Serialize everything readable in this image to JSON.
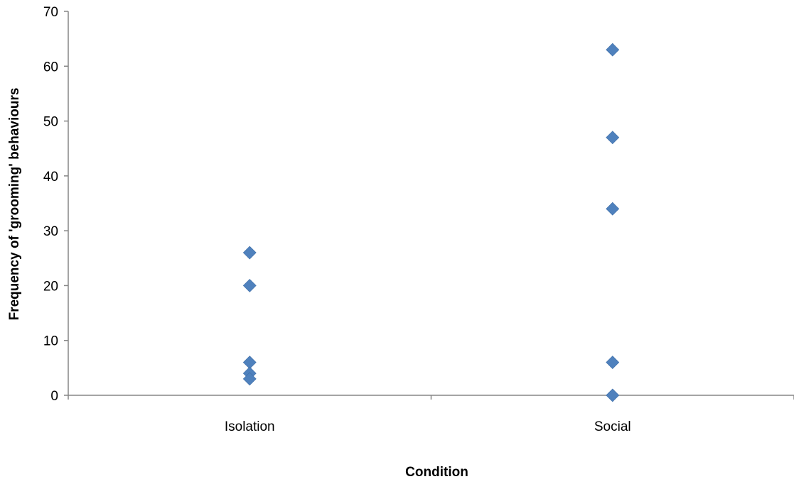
{
  "chart_data": {
    "type": "scatter",
    "title": "",
    "xlabel": "Condition",
    "ylabel": "Frequency of 'grooming' behaviours",
    "categories": [
      "Isolation",
      "Social"
    ],
    "ylim": [
      0,
      70
    ],
    "yticks": [
      0,
      10,
      20,
      30,
      40,
      50,
      60,
      70
    ],
    "grid": false,
    "legend": "none",
    "marker": "diamond",
    "marker_color": "#4F81BD",
    "axis_color": "#868686",
    "series": [
      {
        "points": [
          {
            "x": "Isolation",
            "y": 26
          },
          {
            "x": "Isolation",
            "y": 20
          },
          {
            "x": "Isolation",
            "y": 6
          },
          {
            "x": "Isolation",
            "y": 4
          },
          {
            "x": "Isolation",
            "y": 3
          },
          {
            "x": "Social",
            "y": 63
          },
          {
            "x": "Social",
            "y": 47
          },
          {
            "x": "Social",
            "y": 34
          },
          {
            "x": "Social",
            "y": 6
          },
          {
            "x": "Social",
            "y": 0
          }
        ]
      }
    ]
  }
}
